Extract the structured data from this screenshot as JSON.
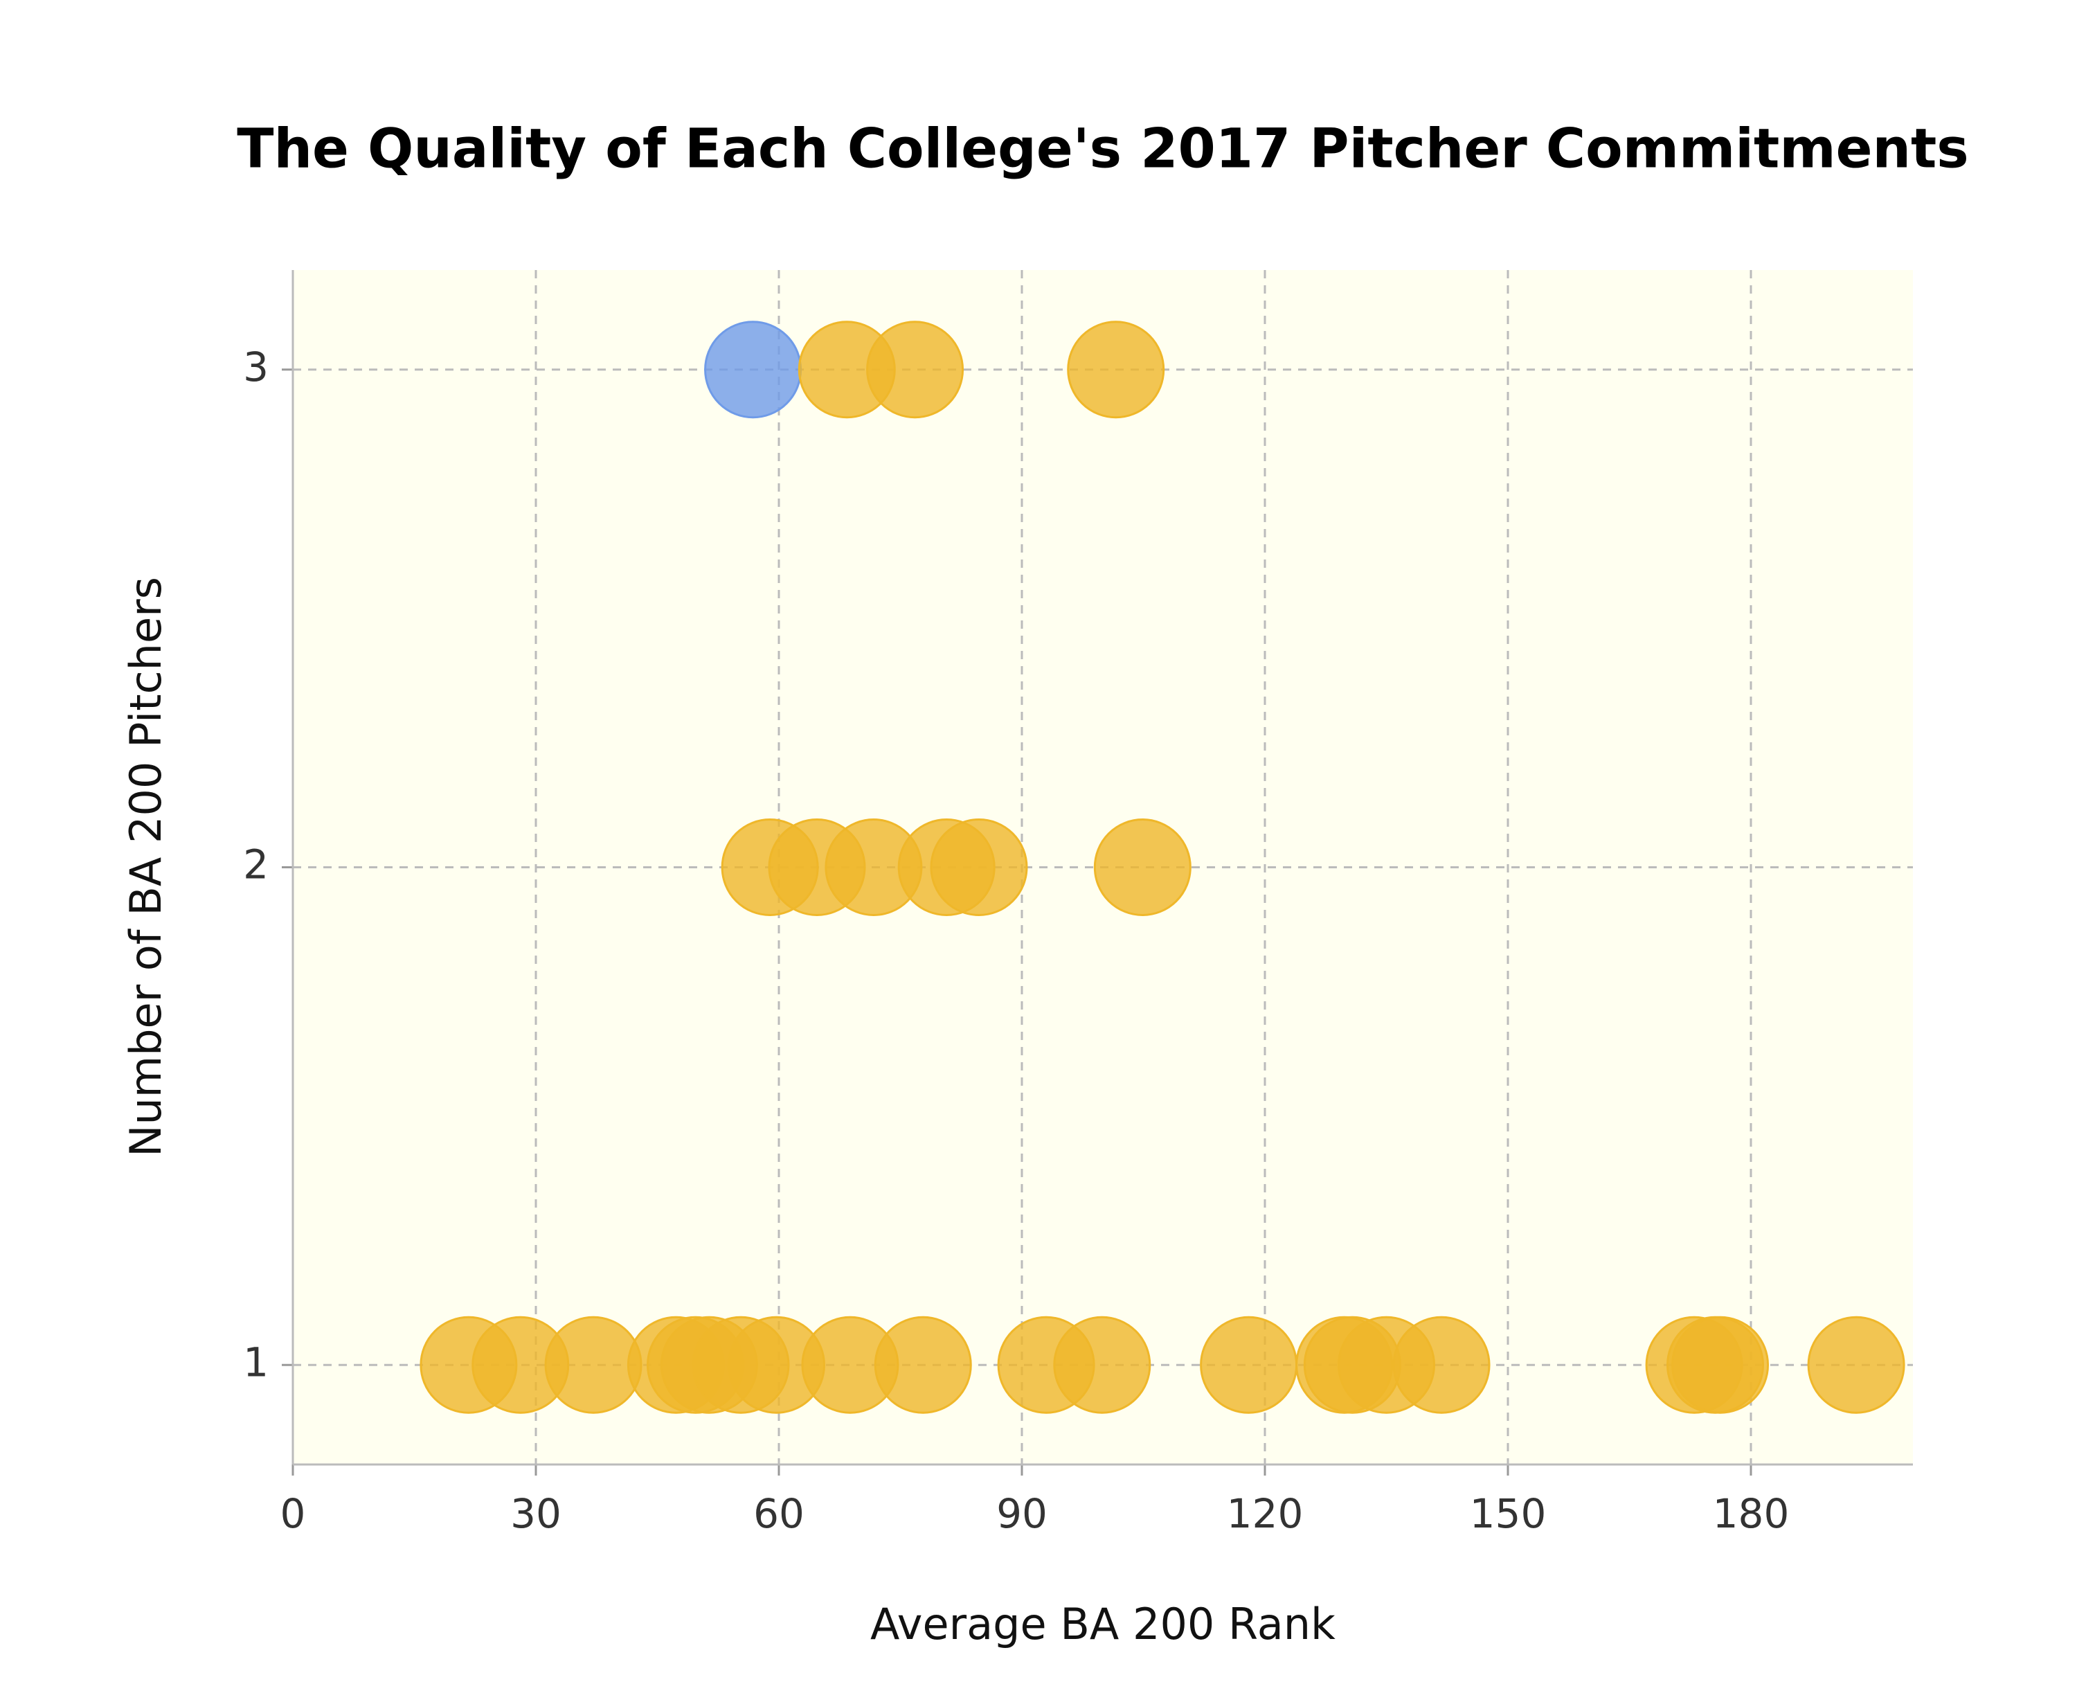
{
  "chart_data": {
    "type": "scatter",
    "title": "The Quality of Each College's 2017 Pitcher Commitments",
    "x_label": "Average BA 200 Rank",
    "y_label": "Number of BA 200 Pitchers",
    "series": [
      {
        "color": "#6f9be8",
        "x": [
          56.8
        ],
        "values": [
          3
        ]
      },
      {
        "color": "#efb72a",
        "x": [
          68.4,
          76.8,
          101.6,
          58.9,
          64.7,
          71.7,
          80.7,
          84.7,
          104.9,
          21.7,
          28.1,
          37.1,
          47.3,
          49.7,
          51.4,
          55.3,
          59.7,
          68.8,
          77.8,
          93.0,
          99.9,
          118.0,
          129.8,
          130.8,
          135.0,
          141.8,
          173.0,
          175.6,
          176.2,
          193.0
        ],
        "values": [
          3,
          3,
          3,
          2,
          2,
          2,
          2,
          2,
          2,
          1,
          1,
          1,
          1,
          1,
          1,
          1,
          1,
          1,
          1,
          1,
          1,
          1,
          1,
          1,
          1,
          1,
          1,
          1,
          1,
          1
        ]
      }
    ],
    "xlim": [
      0,
      200
    ],
    "xticks": [
      0,
      30,
      60,
      90,
      120,
      150,
      180
    ],
    "ylim": [
      0.8,
      3.2
    ],
    "yticks": [
      1,
      2,
      3
    ],
    "grid": true,
    "background": "#fffff0"
  }
}
